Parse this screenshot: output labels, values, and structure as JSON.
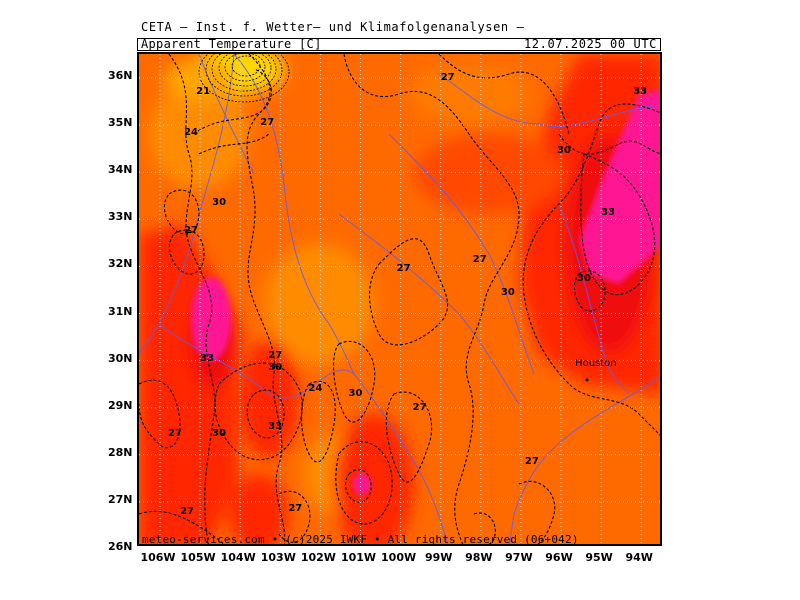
{
  "header": {
    "line": "CETA — Inst. f. Wetter— und Klimafolgenanalysen —"
  },
  "title_bar": {
    "parameter": "Apparent_Temperature [C]",
    "datetime": "12.07.2025 00 UTC"
  },
  "axes": {
    "lat_labels": [
      "36N",
      "35N",
      "34N",
      "33N",
      "32N",
      "31N",
      "30N",
      "29N",
      "28N",
      "27N",
      "26N"
    ],
    "lon_labels": [
      "106W",
      "105W",
      "104W",
      "103W",
      "102W",
      "101W",
      "100W",
      "99W",
      "98W",
      "97W",
      "96W",
      "95W",
      "94W"
    ]
  },
  "contour_labels": [
    {
      "text": "21",
      "lon": -104.9,
      "lat": 35.65
    },
    {
      "text": "24",
      "lon": -105.2,
      "lat": 34.8
    },
    {
      "text": "27",
      "lon": -103.3,
      "lat": 35.0
    },
    {
      "text": "27",
      "lon": -98.8,
      "lat": 35.95
    },
    {
      "text": "30",
      "lon": -104.5,
      "lat": 33.3
    },
    {
      "text": "27",
      "lon": -105.2,
      "lat": 32.7
    },
    {
      "text": "33",
      "lon": -94.0,
      "lat": 35.65
    },
    {
      "text": "30",
      "lon": -95.9,
      "lat": 34.4
    },
    {
      "text": "33",
      "lon": -94.8,
      "lat": 33.1
    },
    {
      "text": "27",
      "lon": -99.9,
      "lat": 31.9
    },
    {
      "text": "27",
      "lon": -98.0,
      "lat": 32.1
    },
    {
      "text": "30",
      "lon": -97.3,
      "lat": 31.4
    },
    {
      "text": "30",
      "lon": -95.4,
      "lat": 31.7
    },
    {
      "text": "33",
      "lon": -104.8,
      "lat": 30.0
    },
    {
      "text": "27",
      "lon": -103.1,
      "lat": 30.05
    },
    {
      "text": "30",
      "lon": -103.1,
      "lat": 29.8
    },
    {
      "text": "24",
      "lon": -102.1,
      "lat": 29.35
    },
    {
      "text": "30",
      "lon": -101.1,
      "lat": 29.25
    },
    {
      "text": "27",
      "lon": -99.5,
      "lat": 28.95
    },
    {
      "text": "27",
      "lon": -105.6,
      "lat": 28.4
    },
    {
      "text": "30",
      "lon": -104.5,
      "lat": 28.4
    },
    {
      "text": "33",
      "lon": -103.1,
      "lat": 28.55
    },
    {
      "text": "27",
      "lon": -96.7,
      "lat": 27.8
    },
    {
      "text": "27",
      "lon": -105.3,
      "lat": 26.75
    },
    {
      "text": "27",
      "lon": -102.6,
      "lat": 26.8
    }
  ],
  "city": {
    "name": "Houston",
    "lon": -95.35,
    "lat": 29.76
  },
  "credit": "meteo-services.com • (c)2025 IWKF • All rights reserved (06+042)",
  "colors": {
    "background_orange": "#ff6a00",
    "cooler_orange": "#ff8c00",
    "warm_red": "#ff2800",
    "hot_red": "#f51010",
    "magenta": "#ff1493",
    "yellow_cold": "#ffd700",
    "river_blue": "#5a5aff",
    "grid_dots": "#c8c8c8"
  }
}
